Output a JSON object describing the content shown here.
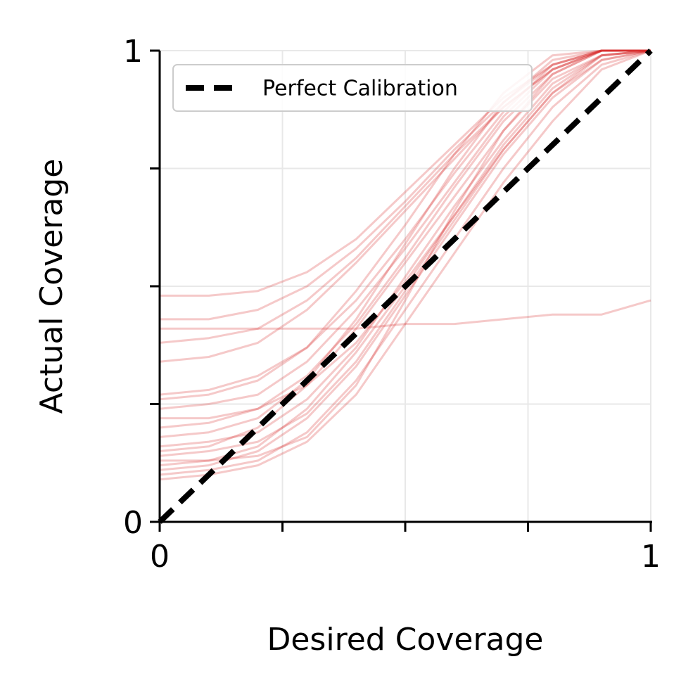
{
  "chart_data": {
    "type": "line",
    "xlabel": "Desired Coverage",
    "ylabel": "Actual Coverage",
    "xlim": [
      0,
      1
    ],
    "ylim": [
      0,
      1
    ],
    "xticks": [
      0,
      {
        "value": 0.25,
        "label": null
      },
      {
        "value": 0.5,
        "label": null
      },
      {
        "value": 0.75,
        "label": null
      },
      1
    ],
    "yticks": [
      0,
      {
        "value": 0.25,
        "label": null
      },
      {
        "value": 0.5,
        "label": null
      },
      {
        "value": 0.75,
        "label": null
      },
      1
    ],
    "grid": true,
    "legend": "upper left",
    "line_alpha": 0.25,
    "x": [
      0,
      0.1,
      0.2,
      0.3,
      0.4,
      0.5,
      0.6,
      0.7,
      0.8,
      0.9,
      1
    ],
    "series": [
      {
        "color": "#d62728",
        "values": [
          0.12,
          0.13,
          0.16,
          0.24,
          0.36,
          0.5,
          0.65,
          0.8,
          0.92,
          0.99,
          1
        ]
      },
      {
        "color": "#d62728",
        "values": [
          0.15,
          0.16,
          0.2,
          0.29,
          0.41,
          0.55,
          0.69,
          0.83,
          0.94,
          0.99,
          1
        ]
      },
      {
        "color": "#d62728",
        "values": [
          0.2,
          0.21,
          0.24,
          0.31,
          0.42,
          0.56,
          0.71,
          0.85,
          0.95,
          1,
          1
        ]
      },
      {
        "color": "#d62728",
        "values": [
          0.24,
          0.25,
          0.27,
          0.34,
          0.45,
          0.58,
          0.72,
          0.86,
          0.96,
          1,
          1
        ]
      },
      {
        "color": "#d62728",
        "values": [
          0.1,
          0.11,
          0.13,
          0.19,
          0.3,
          0.45,
          0.6,
          0.75,
          0.88,
          0.97,
          1
        ]
      },
      {
        "color": "#d62728",
        "values": [
          0.09,
          0.1,
          0.12,
          0.17,
          0.27,
          0.42,
          0.57,
          0.72,
          0.85,
          0.96,
          1
        ]
      },
      {
        "color": "#d62728",
        "values": [
          0.18,
          0.19,
          0.22,
          0.3,
          0.43,
          0.59,
          0.75,
          0.89,
          0.98,
          1,
          1
        ]
      },
      {
        "color": "#d62728",
        "values": [
          0.26,
          0.27,
          0.3,
          0.37,
          0.49,
          0.63,
          0.78,
          0.91,
          0.99,
          1,
          1
        ]
      },
      {
        "color": "#d62728",
        "values": [
          0.13,
          0.13,
          0.14,
          0.18,
          0.29,
          0.47,
          0.66,
          0.83,
          0.95,
          1,
          1
        ]
      },
      {
        "color": "#d62728",
        "values": [
          0.22,
          0.22,
          0.24,
          0.29,
          0.38,
          0.51,
          0.65,
          0.79,
          0.91,
          0.98,
          1
        ]
      },
      {
        "color": "#d62728",
        "values": [
          0.16,
          0.17,
          0.19,
          0.26,
          0.37,
          0.52,
          0.67,
          0.81,
          0.93,
          0.99,
          1
        ]
      },
      {
        "color": "#d62728",
        "values": [
          0.11,
          0.12,
          0.15,
          0.22,
          0.33,
          0.48,
          0.63,
          0.78,
          0.9,
          0.98,
          1
        ]
      },
      {
        "color": "#d62728",
        "values": [
          0.27,
          0.28,
          0.31,
          0.37,
          0.47,
          0.6,
          0.74,
          0.87,
          0.97,
          1,
          1
        ]
      },
      {
        "color": "#d62728",
        "values": [
          0.14,
          0.15,
          0.17,
          0.23,
          0.34,
          0.49,
          0.64,
          0.79,
          0.91,
          0.99,
          1
        ]
      },
      {
        "color": "#d62728",
        "values": [
          0.48,
          0.48,
          0.49,
          0.53,
          0.6,
          0.7,
          0.8,
          0.9,
          0.97,
          1,
          1
        ]
      },
      {
        "color": "#d62728",
        "values": [
          0.43,
          0.43,
          0.45,
          0.5,
          0.58,
          0.68,
          0.79,
          0.89,
          0.97,
          1,
          1
        ]
      },
      {
        "color": "#d62728",
        "values": [
          0.34,
          0.35,
          0.38,
          0.45,
          0.55,
          0.66,
          0.77,
          0.88,
          0.96,
          1,
          1
        ]
      },
      {
        "color": "#d62728",
        "values": [
          0.41,
          0.41,
          0.41,
          0.41,
          0.41,
          0.42,
          0.42,
          0.43,
          0.44,
          0.44,
          0.47
        ]
      },
      {
        "color": "#d62728",
        "values": [
          0.38,
          0.39,
          0.41,
          0.47,
          0.56,
          0.67,
          0.78,
          0.88,
          0.96,
          1,
          1
        ]
      },
      {
        "name": "Perfect Calibration",
        "color": "#000000",
        "dashed": true,
        "values": [
          0,
          0.1,
          0.2,
          0.3,
          0.4,
          0.5,
          0.6,
          0.7,
          0.8,
          0.9,
          1
        ]
      }
    ]
  }
}
